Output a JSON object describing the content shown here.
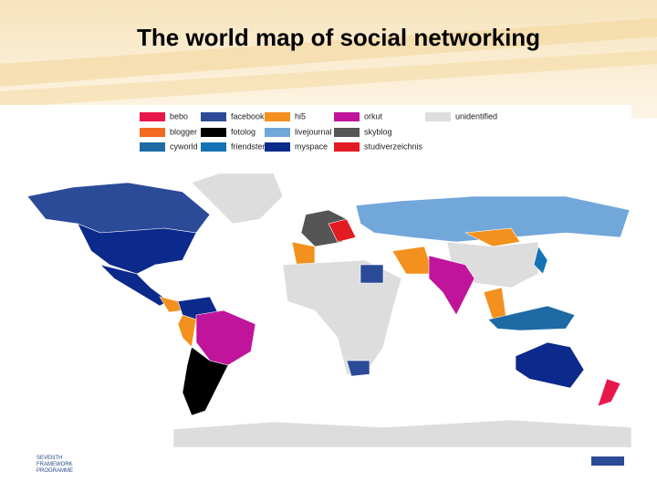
{
  "header": {
    "title": "The world map of social networking"
  },
  "legend": {
    "items": [
      {
        "name": "bebo",
        "color": "#e8174a"
      },
      {
        "name": "blogger",
        "color": "#f26b21"
      },
      {
        "name": "cyworld",
        "color": "#1d6aa5"
      },
      {
        "name": "facebook",
        "color": "#2b4b99"
      },
      {
        "name": "fotolog",
        "color": "#000000"
      },
      {
        "name": "friendster",
        "color": "#1473b5"
      },
      {
        "name": "hi5",
        "color": "#f4901e"
      },
      {
        "name": "livejournal",
        "color": "#72a7da"
      },
      {
        "name": "myspace",
        "color": "#0c2a8c"
      },
      {
        "name": "orkut",
        "color": "#c0149c"
      },
      {
        "name": "skyblog",
        "color": "#555555"
      },
      {
        "name": "studiverzeichnis",
        "color": "#e31b23"
      },
      {
        "name": "unidentified",
        "color": "#dddddd"
      }
    ]
  },
  "footer": {
    "text": "SEVENTH FRAMEWORK PROGRAMME"
  }
}
